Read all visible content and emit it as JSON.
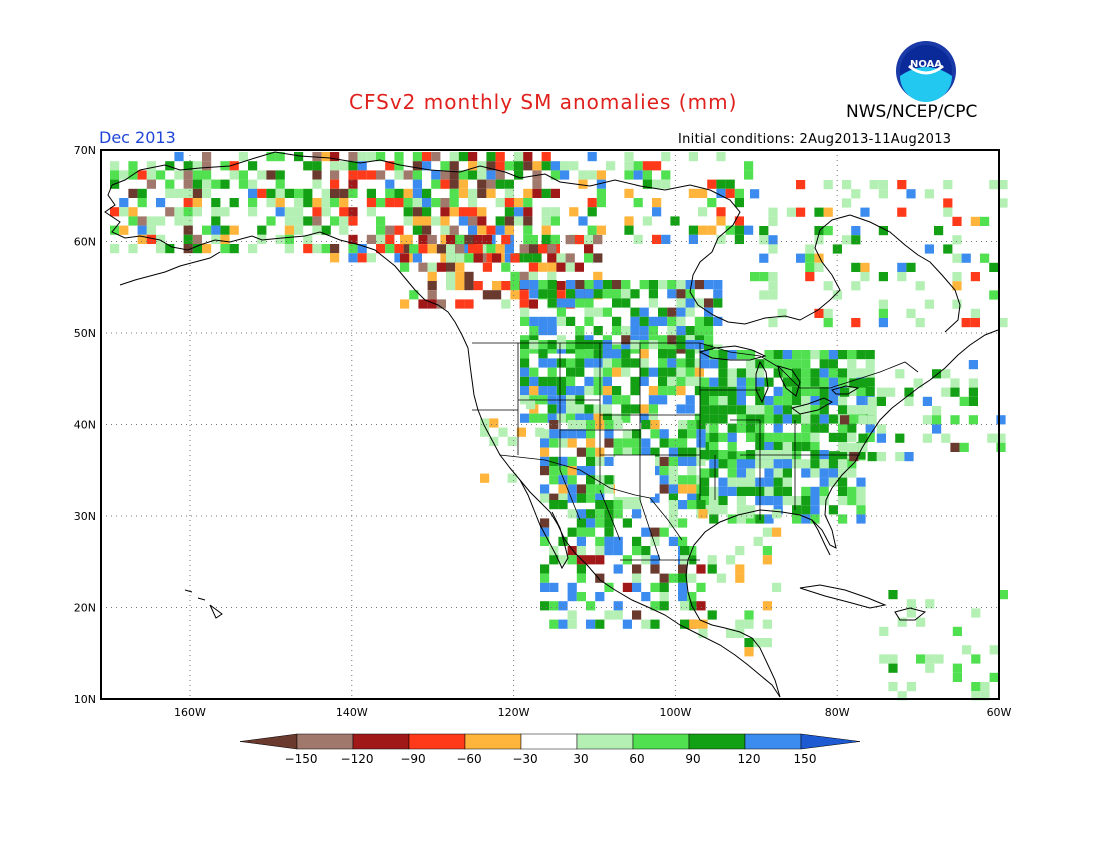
{
  "header": {
    "title": "CFSv2 monthly SM anomalies (mm)",
    "agency": "NWS/NCEP/CPC",
    "month": "Dec 2013",
    "initial_conditions": "Initial conditions: 2Aug2013-11Aug2013",
    "logo_text": "NOAA"
  },
  "map": {
    "projection": "equirectangular",
    "lon_range": [
      -171,
      -60
    ],
    "lat_range": [
      10,
      70
    ],
    "lat_labels": [
      "70N",
      "60N",
      "50N",
      "40N",
      "30N",
      "20N",
      "10N"
    ],
    "lon_labels": [
      "160W",
      "140W",
      "120W",
      "100W",
      "80W",
      "60W"
    ],
    "gridlines": "dotted"
  },
  "colorbar": {
    "ticks": [
      "−150",
      "−120",
      "−90",
      "−60",
      "−30",
      "30",
      "60",
      "90",
      "120",
      "150"
    ],
    "colors": {
      "lt_-150": "#6b3a2e",
      "-150_-120": "#a0786c",
      "-120_-90": "#a01818",
      "-90_-60": "#ff3a1a",
      "-60_-30": "#ffb43c",
      "-30_30": "#ffffff",
      "30_60": "#b4f0b4",
      "60_90": "#50e050",
      "90_120": "#14a014",
      "120_150": "#3c8cf0",
      "gt_150": "#1e5ad2"
    }
  }
}
